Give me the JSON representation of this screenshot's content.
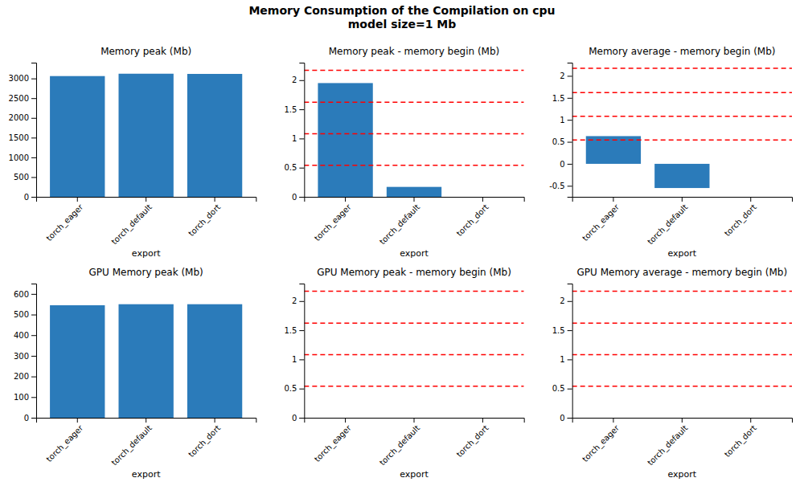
{
  "title": "Memory Consumption of the Compilation on cpu\nmodel size=1 Mb",
  "chart_data": [
    {
      "type": "bar",
      "title": "Memory peak (Mb)",
      "xlabel": "export",
      "categories": [
        "torch_eager",
        "torch_default",
        "torch_dort"
      ],
      "values": [
        3060,
        3120,
        3115
      ],
      "color": "#2b7bba",
      "ylim": [
        0,
        3400
      ],
      "yticks": [
        0,
        500,
        1000,
        1500,
        2000,
        2500,
        3000
      ],
      "grid": false
    },
    {
      "type": "bar",
      "title": "Memory peak - memory begin (Mb)",
      "xlabel": "export",
      "categories": [
        "torch_eager",
        "torch_default",
        "torch_dort"
      ],
      "values": [
        1.95,
        0.17,
        0.0
      ],
      "color": "#2b7bba",
      "ylim": [
        0.0,
        2.3
      ],
      "yticks": [
        0,
        0.5,
        1,
        1.5,
        2
      ],
      "grid": false,
      "hlines": {
        "values": [
          0.54,
          1.08,
          1.62,
          2.17
        ],
        "color": "red",
        "line_style": "dashed"
      }
    },
    {
      "type": "bar",
      "title": "Memory average - memory begin (Mb)",
      "xlabel": "export",
      "categories": [
        "torch_eager",
        "torch_default",
        "torch_dort"
      ],
      "values": [
        0.63,
        -0.55,
        0.0
      ],
      "color": "#2b7bba",
      "ylim": [
        -0.75,
        2.3
      ],
      "yticks": [
        -0.5,
        0,
        0.5,
        1,
        1.5,
        2
      ],
      "grid": false,
      "hlines": {
        "values": [
          0.54,
          1.08,
          1.62,
          2.17
        ],
        "color": "red",
        "line_style": "dashed"
      }
    },
    {
      "type": "bar",
      "title": "GPU Memory peak (Mb)",
      "xlabel": "export",
      "categories": [
        "torch_eager",
        "torch_default",
        "torch_dort"
      ],
      "values": [
        545,
        550,
        550
      ],
      "color": "#2b7bba",
      "ylim": [
        0,
        650
      ],
      "yticks": [
        0,
        100,
        200,
        300,
        400,
        500,
        600
      ],
      "grid": false
    },
    {
      "type": "bar",
      "title": "GPU Memory peak - memory begin (Mb)",
      "xlabel": "export",
      "categories": [
        "torch_eager",
        "torch_default",
        "torch_dort"
      ],
      "values": [
        0.0,
        0.0,
        0.0
      ],
      "color": "#2b7bba",
      "ylim": [
        0.0,
        2.3
      ],
      "yticks": [
        0,
        0.5,
        1,
        1.5,
        2
      ],
      "grid": false,
      "hlines": {
        "values": [
          0.54,
          1.08,
          1.62,
          2.17
        ],
        "color": "red",
        "line_style": "dashed"
      }
    },
    {
      "type": "bar",
      "title": "GPU Memory average - memory begin (Mb)",
      "xlabel": "export",
      "categories": [
        "torch_eager",
        "torch_default",
        "torch_dort"
      ],
      "values": [
        0.0,
        0.0,
        0.0
      ],
      "color": "#2b7bba",
      "ylim": [
        0.0,
        2.3
      ],
      "yticks": [
        0,
        0.5,
        1,
        1.5,
        2
      ],
      "grid": false,
      "hlines": {
        "values": [
          0.54,
          1.08,
          1.62,
          2.17
        ],
        "color": "red",
        "line_style": "dashed"
      }
    }
  ]
}
